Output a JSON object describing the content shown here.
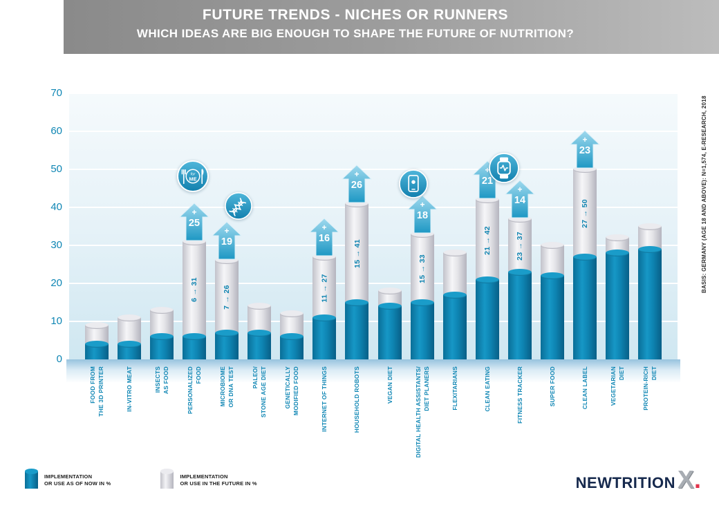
{
  "header": {
    "title": "FUTURE TRENDS - NICHES OR RUNNERS",
    "subtitle": "WHICH IDEAS ARE BIG ENOUGH TO SHAPE THE FUTURE OF NUTRITION?"
  },
  "side_note": "BASIS: GERMANY (AGE 18 AND ABOVE): N=1,574, E-RESEARCH, 2018",
  "legend": [
    {
      "key": "now",
      "icon": "blue-cylinder-icon",
      "lines": [
        "IMPLEMENTATION",
        "OR USE AS OF NOW IN %"
      ]
    },
    {
      "key": "future",
      "icon": "white-cylinder-icon",
      "lines": [
        "IMPLEMENTATION",
        "OR USE IN THE FUTURE IN %"
      ]
    }
  ],
  "logo": {
    "name": "NEWTRITION",
    "mark": "X",
    "dot": "."
  },
  "colors": {
    "bar_now": "#0f86b4",
    "bar_future": "#ebebef",
    "arrow_blue": "#2aa2cc",
    "axis_text": "#0f86b4",
    "banner_gray": "#9d9d9d",
    "logo_navy": "#16294d",
    "logo_red": "#e2334b"
  },
  "chart_data": {
    "type": "bar",
    "stacked": true,
    "unit": "%",
    "title": "FUTURE TRENDS - NICHES OR RUNNERS",
    "subtitle": "WHICH IDEAS ARE BIG ENOUGH TO SHAPE THE FUTURE OF NUTRITION?",
    "ylim": [
      0,
      70
    ],
    "yticks": [
      0,
      10,
      20,
      30,
      40,
      50,
      60,
      70
    ],
    "grid": true,
    "legend_position": "bottom-left",
    "series": [
      {
        "key": "now",
        "name": "IMPLEMENTATION OR USE AS OF NOW IN %"
      },
      {
        "key": "future",
        "name": "IMPLEMENTATION OR USE IN THE FUTURE IN %"
      }
    ],
    "bars": [
      {
        "label": "FOOD FROM\nTHE 3D PRINTER",
        "now": 4,
        "future": 9
      },
      {
        "label": "IN-VITRO MEAT",
        "now": 4,
        "future": 11
      },
      {
        "label": "INSECTS\nAS FOOD",
        "now": 6,
        "future": 13
      },
      {
        "label": "PERSONALIZED\nFOOD",
        "now": 6,
        "future": 31,
        "range_text": "6 → 31",
        "gain": "+25",
        "icon": "personalized-food"
      },
      {
        "label": "MICROBIOME\nOR DNA TEST",
        "now": 7,
        "future": 26,
        "range_text": "7 → 26",
        "gain": "+19",
        "icon": "dna"
      },
      {
        "label": "PALEO/\nSTONE AGE DIET",
        "now": 7,
        "future": 14
      },
      {
        "label": "GENETICALLY\nMODIFIED FOOD",
        "now": 6,
        "future": 12
      },
      {
        "label": "INTERNET OF THINGS",
        "now": 11,
        "future": 27,
        "range_text": "11 → 27",
        "gain": "+16"
      },
      {
        "label": "HOUSEHOLD ROBOTS",
        "now": 15,
        "future": 41,
        "range_text": "15 → 41",
        "gain": "+26"
      },
      {
        "label": "VEGAN DIET",
        "now": 14,
        "future": 18
      },
      {
        "label": "DIGITAL HEALTH ASSISTANTS/\nDIET PLANERS",
        "now": 15,
        "future": 33,
        "range_text": "15 → 33",
        "gain": "+18",
        "icon": "smartphone"
      },
      {
        "label": "FLEXITARIANS",
        "now": 17,
        "future": 28
      },
      {
        "label": "CLEAN EATING",
        "now": 21,
        "future": 42,
        "range_text": "21 → 42",
        "gain": "+21"
      },
      {
        "label": "FITNESS TRACKER",
        "now": 23,
        "future": 37,
        "range_text": "23 → 37",
        "gain": "+14",
        "icon": "smartwatch"
      },
      {
        "label": "SUPER FOOD",
        "now": 22,
        "future": 30
      },
      {
        "label": "CLEAN LABEL",
        "now": 27,
        "future": 50,
        "range_text": "27 → 50",
        "gain": "+23"
      },
      {
        "label": "VEGETARIAN\nDIET",
        "now": 28,
        "future": 32
      },
      {
        "label": "PROTEIN-RICH\nDIET",
        "now": 29,
        "future": 35
      }
    ]
  }
}
